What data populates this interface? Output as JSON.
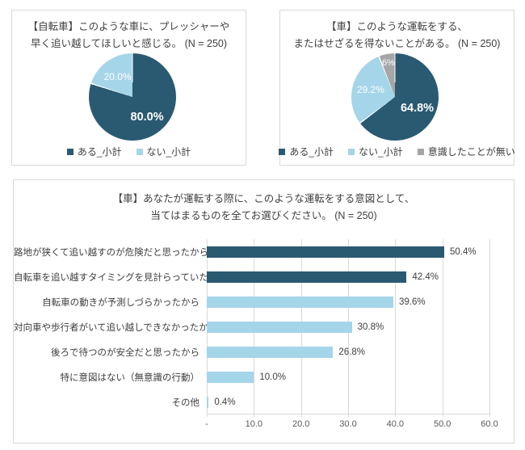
{
  "colors": {
    "dark_blue": "#2a5a72",
    "light_blue": "#a5d5e9",
    "gray": "#a6a6a6",
    "text": "#404040",
    "tick_text": "#595959",
    "panel_border": "#d9d9d9"
  },
  "chart_data": [
    {
      "id": "bicycle-pressure-pie",
      "type": "pie",
      "title_lines": [
        "【自転車】このような車に、プレッシャーや",
        "早く追い越してほしいと感じる。 (N = 250)"
      ],
      "n": 250,
      "slices": [
        {
          "label": "ある_小計",
          "value": 80.0,
          "display": "80.0%",
          "color": "#2a5a72"
        },
        {
          "label": "ない_小計",
          "value": 20.0,
          "display": "20.0%",
          "color": "#a5d5e9"
        }
      ],
      "legend_position": "bottom"
    },
    {
      "id": "car-driving-pie",
      "type": "pie",
      "title_lines": [
        "【車】このような運転をする、",
        "またはせざるを得ないことがある。 (N = 250)"
      ],
      "n": 250,
      "slices": [
        {
          "label": "ある_小計",
          "value": 64.8,
          "display": "64.8%",
          "color": "#2a5a72"
        },
        {
          "label": "ない_小計",
          "value": 29.2,
          "display": "29.2%",
          "color": "#a5d5e9"
        },
        {
          "label": "意識したことが無い",
          "value": 6.0,
          "display": "6%",
          "color": "#a6a6a6"
        }
      ],
      "legend_position": "bottom"
    },
    {
      "id": "car-intent-bar",
      "type": "bar",
      "title_lines": [
        "【車】あなたが運転する際に、このような運転をする意図として、",
        "当てはまるものを全てお選びください。 (N = 250)"
      ],
      "n": 250,
      "categories": [
        "路地が狭くて追い越すのが危険だと思ったから",
        "自転車を追い越すタイミングを見計らっていた",
        "自転車の動きが予測しづらかったから",
        "対向車や歩行者がいて追い越しできなかったから",
        "後ろで待つのが安全だと思ったから",
        "特に意図はない（無意識の行動）",
        "その他"
      ],
      "values": [
        50.4,
        42.4,
        39.6,
        30.8,
        26.8,
        10.0,
        0.4
      ],
      "display_values": [
        "50.4%",
        "42.4%",
        "39.6%",
        "30.8%",
        "26.8%",
        "10.0%",
        "0.4%"
      ],
      "bar_colors": [
        "#2a5a72",
        "#2a5a72",
        "#a5d5e9",
        "#a5d5e9",
        "#a5d5e9",
        "#a5d5e9",
        "#a5d5e9"
      ],
      "xlim": [
        0,
        60
      ],
      "x_ticks": [
        "-",
        "10.0",
        "20.0",
        "30.0",
        "40.0",
        "50.0",
        "60.0"
      ],
      "grid": true,
      "orientation": "horizontal"
    }
  ]
}
